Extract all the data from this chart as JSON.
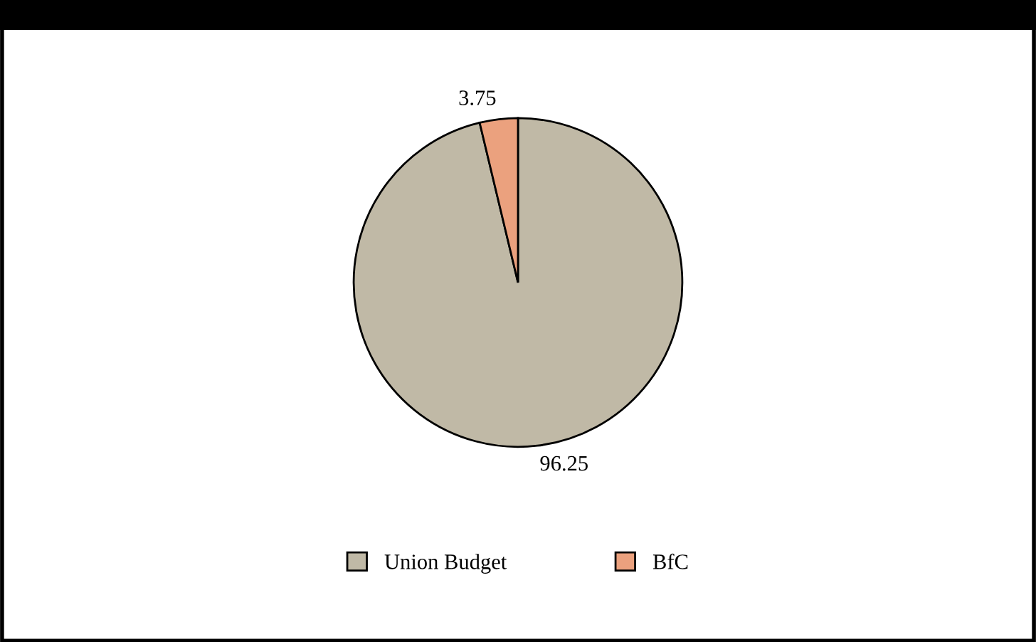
{
  "chart_data": {
    "type": "pie",
    "categories": [
      "Union Budget",
      "BfC"
    ],
    "values": [
      96.25,
      3.75
    ],
    "colors": [
      "#c0b9a6",
      "#eba17e"
    ],
    "data_labels": true,
    "legend": "bottom"
  }
}
